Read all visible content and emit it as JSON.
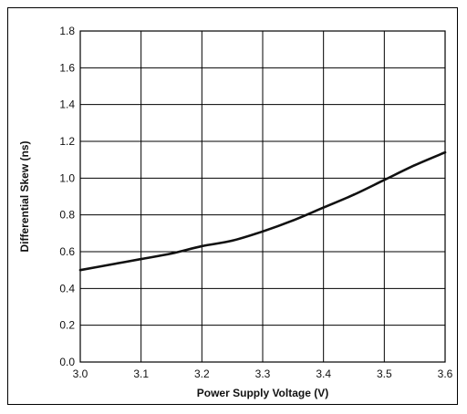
{
  "chart_data": {
    "type": "line",
    "xlabel": "Power Supply Voltage (V)",
    "ylabel": "Differential Skew (ns)",
    "xlim": [
      3.0,
      3.6
    ],
    "ylim": [
      0.0,
      1.8
    ],
    "x_ticks": [
      "3.0",
      "3.1",
      "3.2",
      "3.3",
      "3.4",
      "3.5",
      "3.6"
    ],
    "y_ticks": [
      "0.0",
      "0.2",
      "0.4",
      "0.6",
      "0.8",
      "1.0",
      "1.2",
      "1.4",
      "1.6",
      "1.8"
    ],
    "grid": true,
    "series": [
      {
        "x": [
          3.0,
          3.05,
          3.1,
          3.15,
          3.2,
          3.25,
          3.3,
          3.35,
          3.4,
          3.45,
          3.5,
          3.55,
          3.6
        ],
        "y": [
          0.5,
          0.53,
          0.56,
          0.59,
          0.63,
          0.66,
          0.71,
          0.77,
          0.84,
          0.91,
          0.99,
          1.07,
          1.14
        ]
      }
    ],
    "colors": {
      "line": "#111111",
      "grid": "#000000",
      "background": "#ffffff"
    }
  }
}
